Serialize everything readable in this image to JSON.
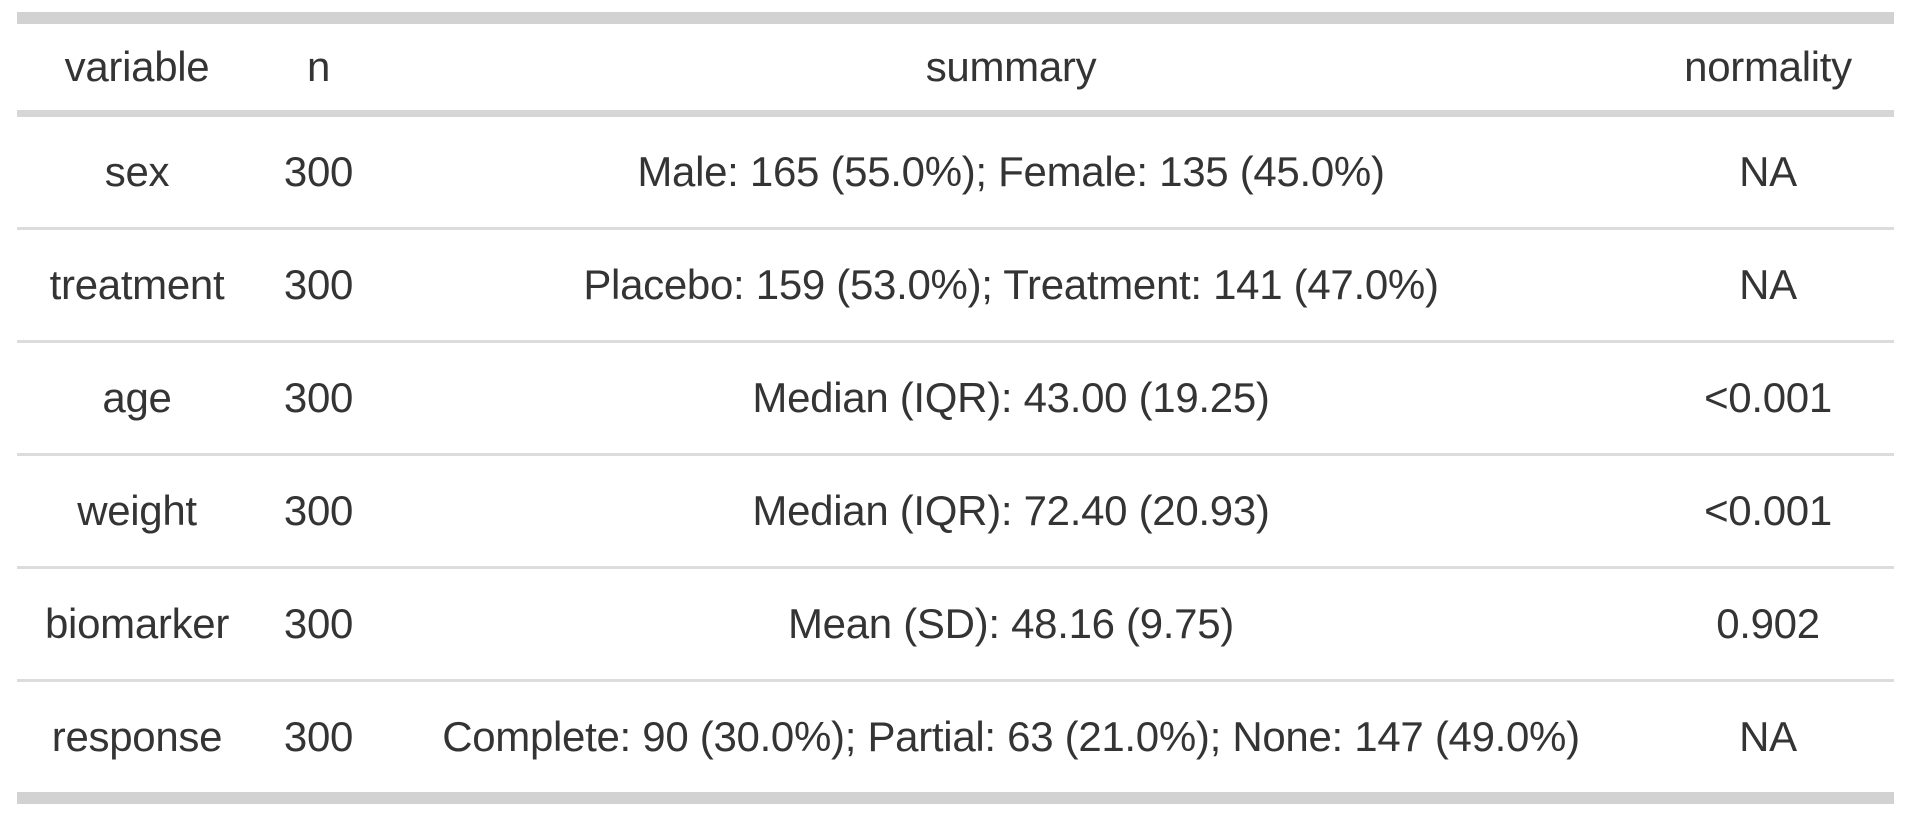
{
  "chart_data": {
    "type": "table",
    "title": "",
    "columns": [
      "variable",
      "n",
      "summary",
      "normality"
    ],
    "rows": [
      {
        "variable": "sex",
        "n": 300,
        "summary": "Male: 165 (55.0%); Female: 135 (45.0%)",
        "normality": "NA"
      },
      {
        "variable": "treatment",
        "n": 300,
        "summary": "Placebo: 159 (53.0%); Treatment: 141 (47.0%)",
        "normality": "NA"
      },
      {
        "variable": "age",
        "n": 300,
        "summary": "Median (IQR): 43.00 (19.25)",
        "normality": "<0.001"
      },
      {
        "variable": "weight",
        "n": 300,
        "summary": "Median (IQR): 72.40 (20.93)",
        "normality": "<0.001"
      },
      {
        "variable": "biomarker",
        "n": 300,
        "summary": "Mean (SD): 48.16 (9.75)",
        "normality": "0.902"
      },
      {
        "variable": "response",
        "n": 300,
        "summary": "Complete: 90 (30.0%); Partial: 63 (21.0%); None: 147 (49.0%)",
        "normality": "NA"
      }
    ],
    "layout": {
      "grid": "horizontal-rules-only",
      "cell_alignment": "center",
      "header_bold": false
    }
  },
  "colors": {
    "text": "#343434",
    "border_thick": "#d2d2d2",
    "border_header": "#d6d6d6",
    "border_row": "#dcdcdc",
    "background": "#ffffff"
  }
}
